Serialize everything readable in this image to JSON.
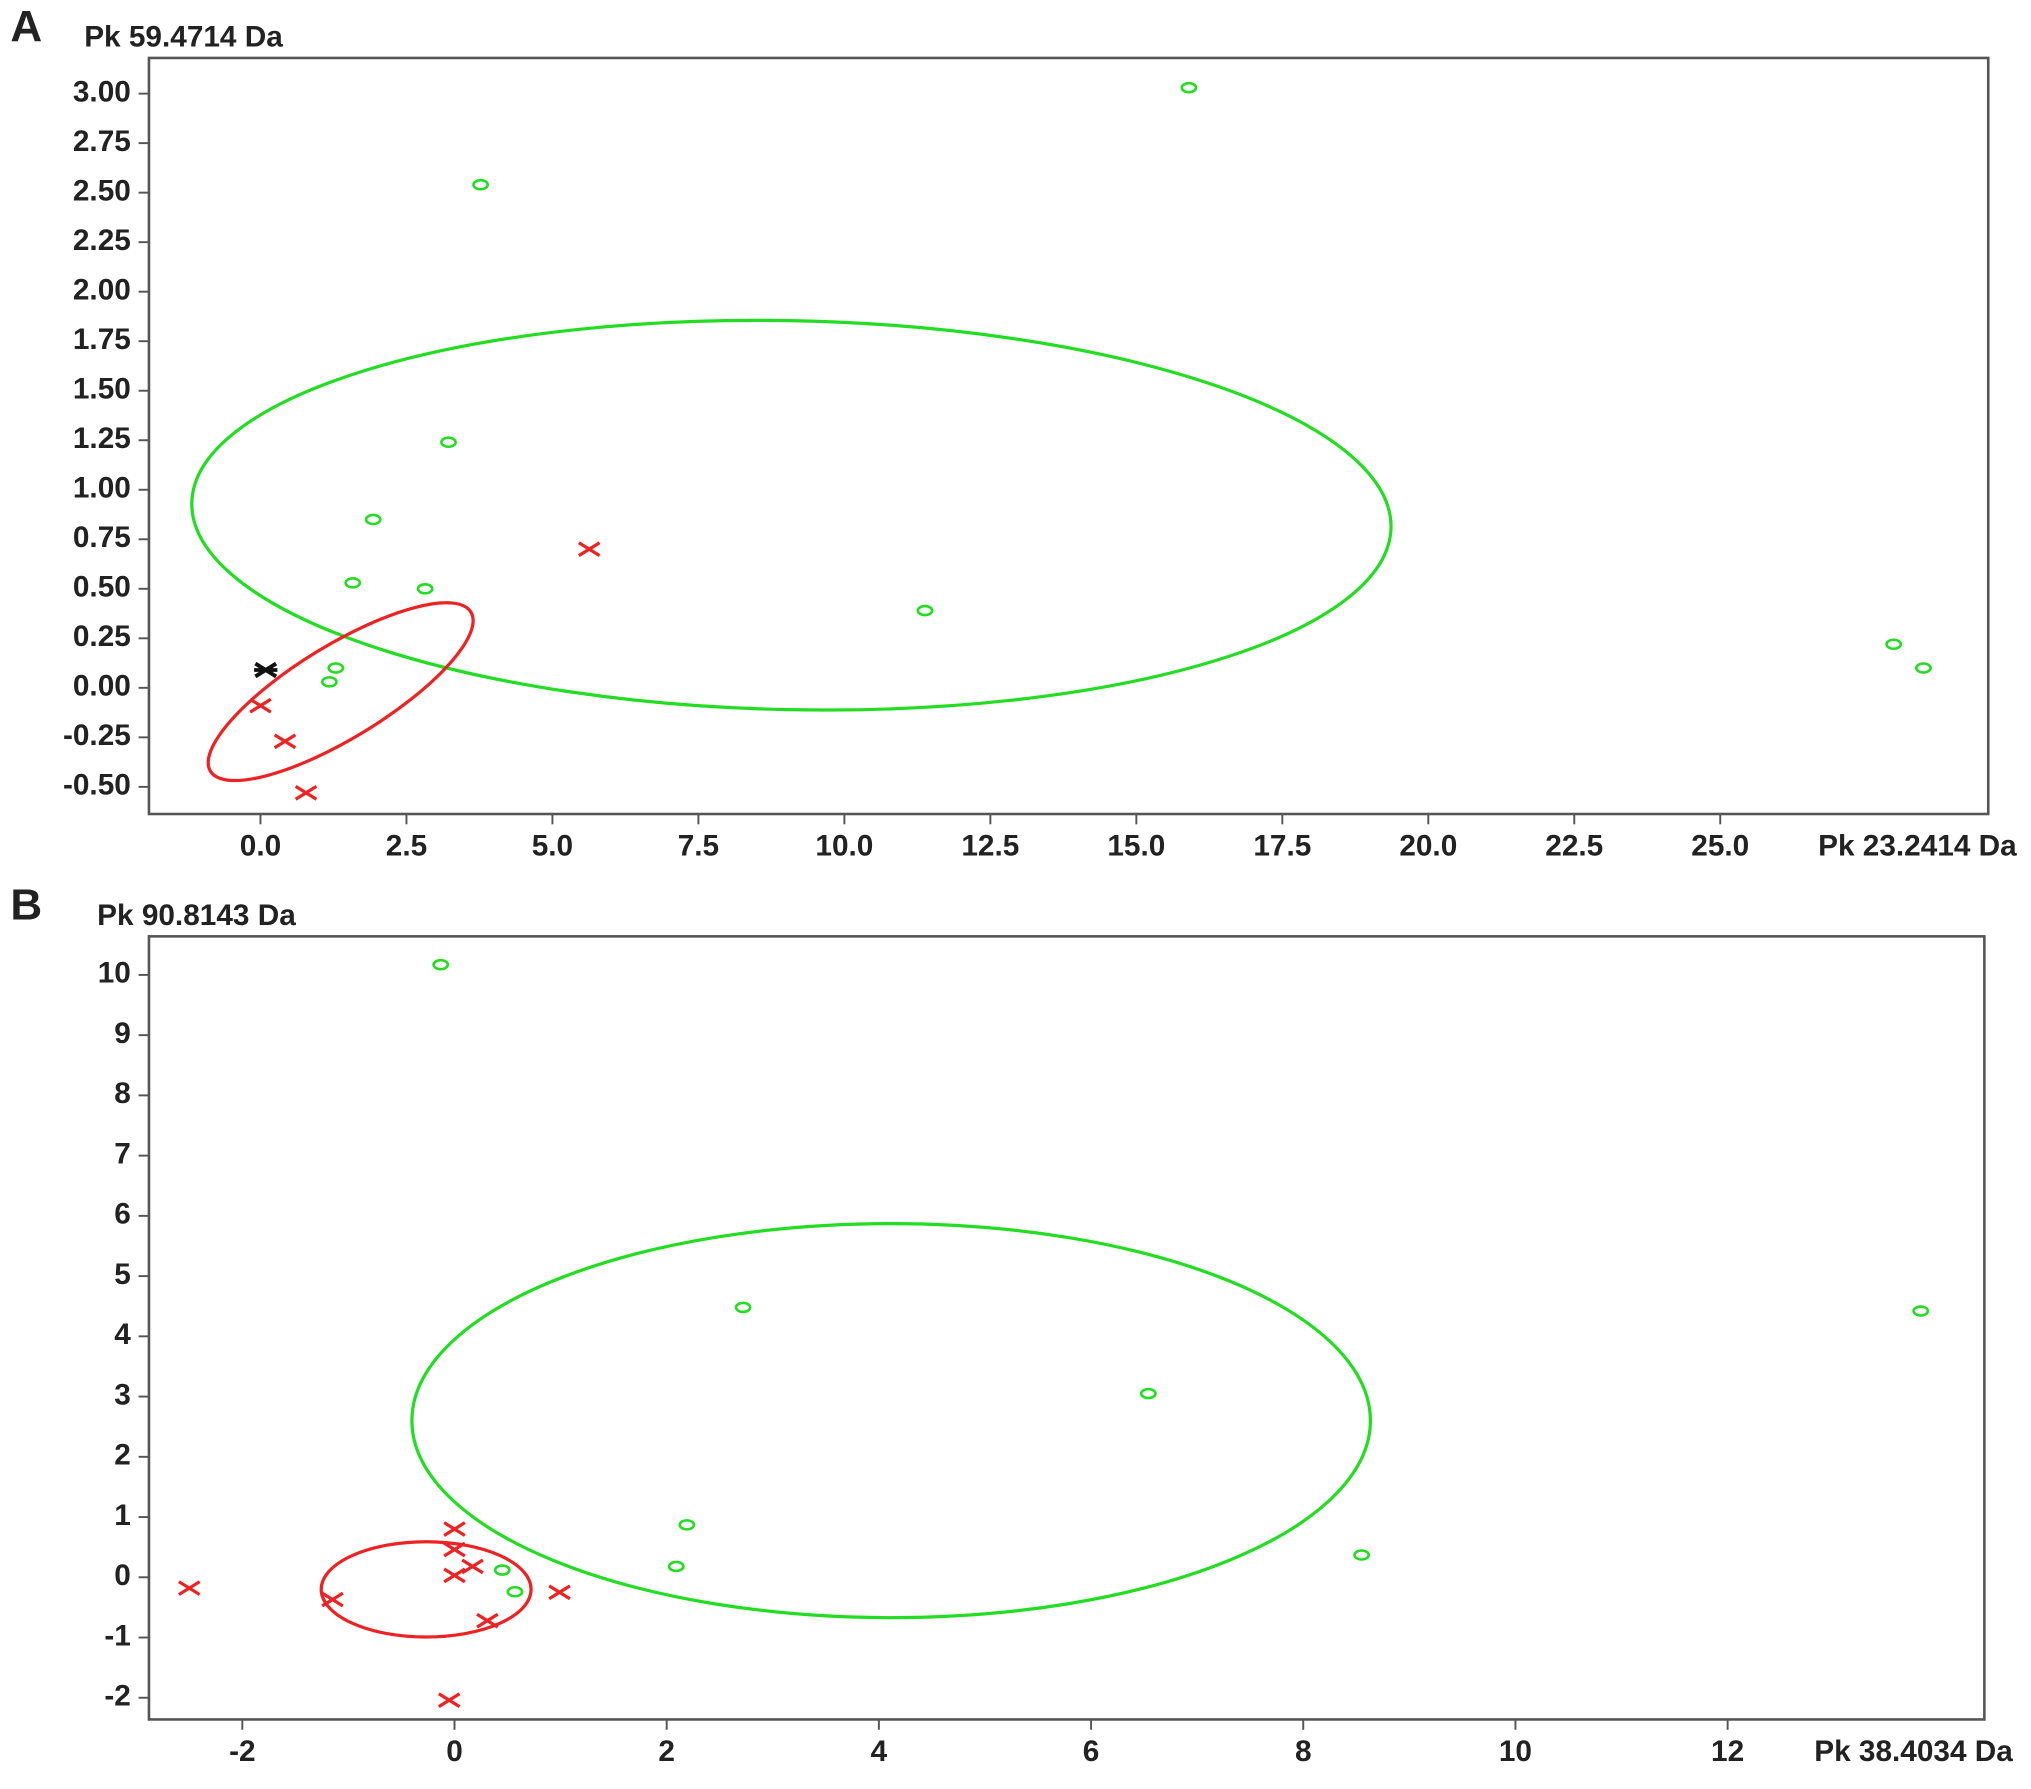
{
  "chart_data": [
    {
      "type": "scatter",
      "label": "A",
      "ylabel": "Pk 59.4714 Da",
      "xlabel": "Pk 23.2414 Da",
      "xlim": [
        -1.91,
        29.59
      ],
      "ylim": [
        -0.637,
        3.18
      ],
      "xticks": [
        {
          "value": 0,
          "label": "0.0"
        },
        2.5,
        {
          "value": 5,
          "label": "5.0"
        },
        7.5,
        {
          "value": 10,
          "label": "10.0"
        },
        12.5,
        {
          "value": 15,
          "label": "15.0"
        },
        17.5,
        {
          "value": 20,
          "label": "20.0"
        },
        22.5,
        {
          "value": 25,
          "label": "25.0"
        }
      ],
      "yticks": [
        {
          "value": -0.5,
          "label": "-0.50"
        },
        {
          "value": -0.25,
          "label": "-0.25"
        },
        {
          "value": 0,
          "label": "0.00"
        },
        {
          "value": 0.25,
          "label": "0.25"
        },
        {
          "value": 0.5,
          "label": "0.50"
        },
        {
          "value": 0.75,
          "label": "0.75"
        },
        {
          "value": 1,
          "label": "1.00"
        },
        {
          "value": 1.25,
          "label": "1.25"
        },
        {
          "value": 1.5,
          "label": "1.50"
        },
        {
          "value": 1.75,
          "label": "1.75"
        },
        {
          "value": 2,
          "label": "2.00"
        },
        {
          "value": 2.25,
          "label": "2.25"
        },
        {
          "value": 2.5,
          "label": "2.50"
        },
        {
          "value": 2.75,
          "label": "2.75"
        },
        {
          "value": 3,
          "label": "3.00"
        }
      ],
      "series": [
        {
          "color": "#22dd22",
          "marker": "o",
          "x": [
            15.9,
            3.77,
            3.22,
            1.93,
            1.58,
            2.82,
            11.38,
            1.29,
            1.18,
            27.97,
            28.48
          ],
          "values": [
            3.03,
            2.54,
            1.24,
            0.85,
            0.53,
            0.5,
            0.39,
            0.1,
            0.03,
            0.22,
            0.1
          ]
        },
        {
          "color": "#ee2222",
          "marker": "x",
          "x": [
            5.63,
            0.0,
            0.42,
            0.78
          ],
          "values": [
            0.7,
            -0.09,
            -0.27,
            -0.53
          ]
        },
        {
          "color": "#111111",
          "marker": "*",
          "x": [
            0.09
          ],
          "values": [
            0.09
          ]
        }
      ]
    },
    {
      "type": "scatter",
      "label": "B",
      "ylabel": "Pk 90.8143 Da",
      "xlabel": "Pk 38.4034 Da",
      "xlim": [
        -2.88,
        14.42
      ],
      "ylim": [
        -2.36,
        10.64
      ],
      "xticks": [
        -2,
        0,
        2,
        4,
        6,
        8,
        10,
        12
      ],
      "yticks": [
        -2,
        -1,
        0,
        1,
        2,
        3,
        4,
        5,
        6,
        7,
        8,
        9,
        10
      ],
      "series": [
        {
          "color": "#22dd22",
          "marker": "o",
          "x": [
            -0.13,
            2.72,
            6.54,
            13.82,
            2.19,
            2.09,
            8.55,
            0.45,
            0.57
          ],
          "values": [
            10.17,
            4.48,
            3.05,
            4.42,
            0.87,
            0.18,
            0.37,
            0.12,
            -0.24
          ]
        },
        {
          "color": "#ee2222",
          "marker": "x",
          "x": [
            -2.5,
            -1.15,
            0,
            0,
            0.17,
            0,
            0.31,
            0.99,
            -0.05
          ],
          "values": [
            -0.18,
            -0.37,
            0.8,
            0.46,
            0.18,
            0.03,
            -0.72,
            -0.25,
            -2.04
          ]
        }
      ]
    }
  ]
}
